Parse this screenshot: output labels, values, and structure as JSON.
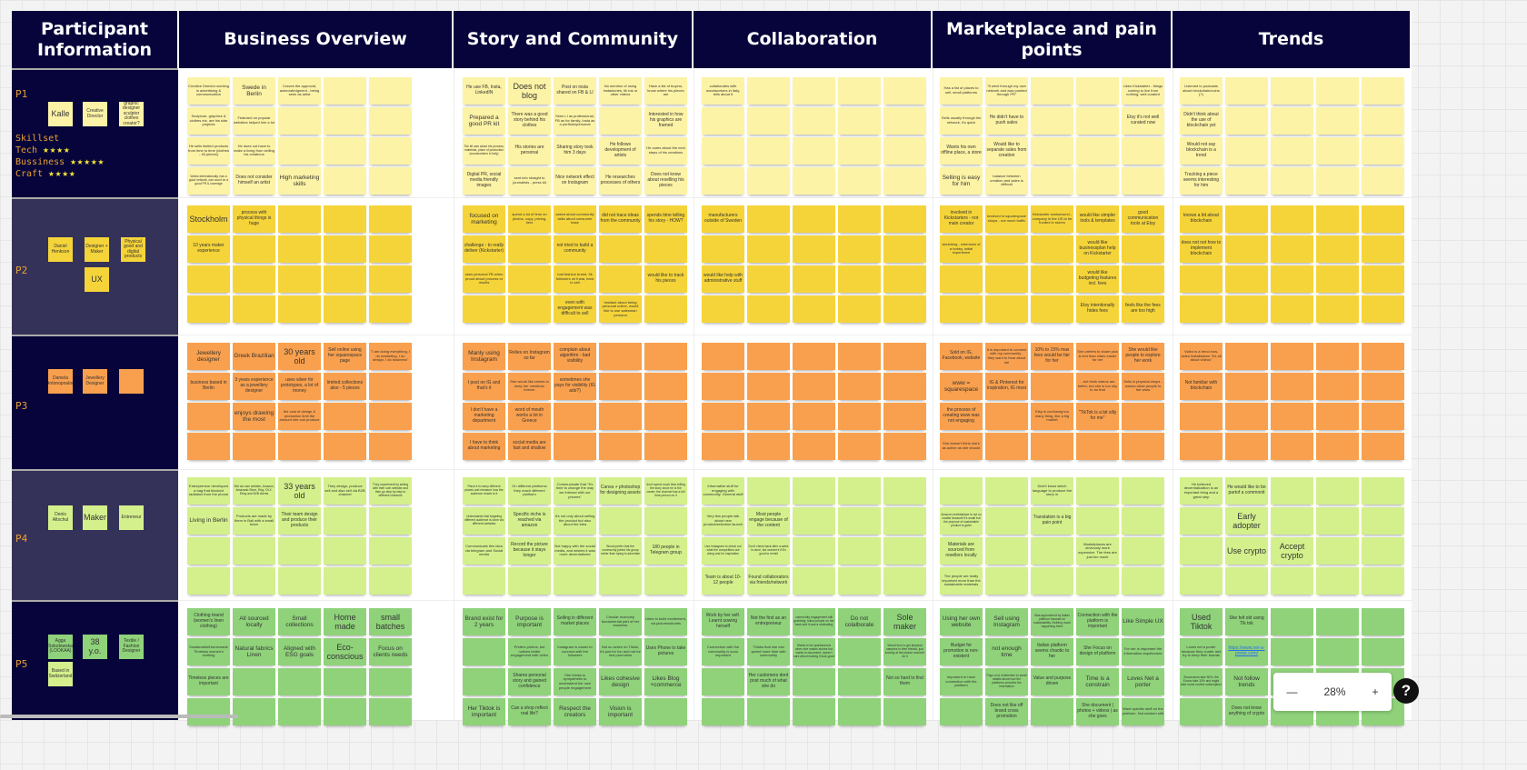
{
  "headers": [
    "Participant Information",
    "Business Overview",
    "Story and Community",
    "Collaboration",
    "Marketplace and pain points",
    "Trends"
  ],
  "colors": {
    "header": "#06043a",
    "row_dark": "#06043a",
    "row_slate": "#35325a",
    "p1": "#fdf3a6",
    "p2": "#f5d43a",
    "p3": "#f9a04e",
    "p4": "#d4f08c",
    "p5": "#8fd27a"
  },
  "participants": [
    {
      "label": "P1",
      "persona": [
        "Kalle",
        "Creative Director",
        "graphic designer sculptor clothes creator?"
      ],
      "skillset": {
        "title": "Skillset",
        "items": [
          {
            "name": "Tech",
            "stars": 4
          },
          {
            "name": "Bussiness",
            "stars": 5
          },
          {
            "name": "Craft",
            "stars": 4
          }
        ]
      }
    },
    {
      "label": "P2",
      "persona": [
        "Daniel Henkson",
        "Designer + Maker",
        "Physical good and digital products",
        "UX"
      ]
    },
    {
      "label": "P3",
      "persona": [
        "Daniela Antonopoulou",
        "Jewellery Designer",
        ""
      ]
    },
    {
      "label": "P4",
      "persona": [
        "Denis Altschul",
        "Maker",
        "Entreneur"
      ]
    },
    {
      "label": "P5",
      "persona": [
        "Agga Sokolowska (LOOKAA)",
        "38 y.o.",
        "Textile / Fashion Designer",
        "Based in Switzerland"
      ]
    }
  ],
  "rows": [
    {
      "business": [
        "Creative Director working in advertising & communication",
        "Swede in Berlin",
        "Craves the approval, acknowledgment - being seen as artist",
        "",
        "",
        "Sculpture, graphics & clothes etc. are his side projects",
        "Featured on popular websites helped him a lot",
        "",
        "",
        "",
        "He sells limited products from time to time (clothes - 40 pieces)",
        "He does not have to make a living from selling his creations",
        "",
        "",
        "",
        "Works internationally, has a good network, can count on a good PR & coverage",
        "Does not consider himself an artist",
        "High marketing skills",
        "",
        ""
      ],
      "story": [
        "He use FB, Insta, LinkedIN",
        "Does not blog",
        "Post on insta shared on FB & LI",
        "No mention of using instastories, tik tok or other videos",
        "Have a list of buyers, know where his pieces are",
        "Prepared a good PR kit",
        "There was a good story behind his clothes",
        "Sees LI as professional, FB as for family, Insta as a portfolio/personal",
        "",
        "Interested in how his graphics are framed",
        "The kit was about his process, materials, place of production (woodworkers in Italy)",
        "His stories are personal",
        "Sharing story took him 3 days",
        "He follows development of artists",
        "He cares about the next steps of his creations",
        "Digital PR, social media friendly images",
        "sent info straight to journalists - press kit",
        "Nice network effect on Instagram",
        "He researches processes of others",
        "Does not know about reselling his pieces"
      ],
      "collab": [
        "collaborates with woodworkers in Italy, tells about it",
        "",
        "",
        "",
        "",
        "",
        "",
        "",
        "",
        "",
        "",
        "",
        "",
        "",
        "",
        "",
        "",
        "",
        "",
        ""
      ],
      "market": [
        "Has a list of places to sell, small platforms",
        "\"It went through my own network and was pushed through PR\"",
        "",
        "",
        "Likes Kickstarter - things coming to live from nothing, well curated",
        "Sells usually through his network, it's quick",
        "He didn't have to push sales",
        "",
        "",
        "Etsy it's not well curated now",
        "Wants his own offline place, a store",
        "Would like to separate sales from creation",
        "",
        "",
        "",
        "Selling is easy for him",
        "balance between creation and sales is difficult",
        "",
        "",
        ""
      ],
      "trends": [
        "Listened to podcasts about blockchain/coins (?)",
        "",
        "",
        "",
        "",
        "Didn't think about the use of blockchain yet",
        "",
        "",
        "",
        "",
        "Would not say blockchain is a trend",
        "",
        "",
        "",
        "",
        "Tracking a piece seems interesting for him",
        "",
        "",
        "",
        ""
      ]
    },
    {
      "business": [
        "Stockholm",
        "process with physical things is huge",
        "",
        "",
        "",
        "10 years maker experience",
        "",
        "",
        "",
        "",
        "",
        "",
        "",
        "",
        "",
        "",
        "",
        "",
        "",
        ""
      ],
      "story": [
        "focused on marketing",
        "spend a lot of time on photos, copy, pricing, tiers",
        "asked about community talks about consumer base",
        "did not trace ideas from the community",
        "spends time telling his story - HOW?",
        "challenge - to really deliver (Kickstarter)",
        "",
        "not tried to build a community",
        "",
        "",
        "uses personal FB when proud about process or results",
        "",
        "had fashion brand, 5k followers on Insta, hard to sell",
        "",
        "would like to track his pieces",
        "",
        "",
        "even with engagement was difficult to sell",
        "hesitant about being personal online, would like to use salesman persona",
        ""
      ],
      "collab": [
        "manufacturers outside of Sweden",
        "",
        "",
        "",
        "",
        "",
        "",
        "",
        "",
        "",
        "would like help with administrative stuff",
        "",
        "",
        "",
        "",
        "",
        "",
        "",
        "",
        ""
      ],
      "market": [
        "involved in Kickstarters - not main creator",
        "involved in squarespace shops - not much traffic",
        "Kickstarter workaround - company in the US to be funded in stores",
        "would like simpler tools & templates",
        "good communication tools at Etsy",
        "sketching - extension of a hobby, initial experience",
        "",
        "",
        "would like businessplan help on Kickstarter",
        "",
        "",
        "",
        "",
        "would like budgeting features incl. fees",
        "",
        "",
        "",
        "",
        "Etsy intentionally hides fees",
        "feels like the fees are too high"
      ],
      "trends": [
        "knows a bit about blockchain",
        "",
        "",
        "",
        "",
        "does not not how to implement blockchain",
        "",
        "",
        "",
        "",
        "",
        "",
        "",
        "",
        "",
        "",
        "",
        "",
        "",
        ""
      ]
    },
    {
      "business": [
        "Jewellery designer",
        "Greek Brazilian",
        "30 years old",
        "Sell online using her squarespace page",
        "\"I am doing everything, I do marketing, I do design, I do business\"",
        "business based in Berlin",
        "3 years experience as a jewellery designer",
        "uses silver for prototypes, a lot of money",
        "limited collections also - 5 pieces",
        "",
        "",
        "enjoys drawing the most",
        "the cost of design & production limit the amount she can produce",
        "",
        "",
        "",
        "",
        "",
        "",
        ""
      ],
      "story": [
        "Manly using Instagram",
        "Relies on Instagram so far",
        "complain about algorithm - bad visibility",
        "",
        "",
        "I post on IG and that's it",
        "She would like clients to keep her creations forever",
        "sometimes she pays for visibility (IG ads?)",
        "",
        "",
        "I don't have a marketing department",
        "word of mouth works a lot in Greece",
        "",
        "",
        "",
        "I have to think about marketing",
        "social media are fast and shallow",
        "",
        "",
        ""
      ],
      "collab": [
        "",
        "",
        "",
        "",
        "",
        "",
        "",
        "",
        "",
        "",
        "",
        "",
        "",
        "",
        "",
        "",
        "",
        "",
        "",
        ""
      ],
      "market": [
        "Sold on IG, Facebook, website",
        "It is important to connect with my community - they want to hear about me",
        "10% to 15% max fees would be fair for her",
        "She prefers to share pics & text than video easier for her",
        "She would like people to explore her work",
        "www = squarespace",
        "IG & Pinterest for inspiration, IG most",
        "",
        "...but think videos are better, but she is too shy to do that",
        "Sells in physical shops - wanna allow people to her www",
        "the process of creating www was not engaging",
        "",
        "Etsy is confusing too many thing, like a big market",
        "\"TikTok is a bit silly for me\"",
        "",
        "She doesn't think she's as active as she should",
        "",
        "",
        "",
        ""
      ],
      "trends": [
        "Video is a trend now, video installations \"it's all about videos\"",
        "",
        "",
        "",
        "",
        "Not familiar with blockchain",
        "",
        "",
        "",
        "",
        "",
        "",
        "",
        "",
        "",
        "",
        "",
        "",
        "",
        ""
      ]
    },
    {
      "business": [
        "Entrepreneur developed a bag that blocked radiation from the phone",
        "Sell via own website, Amazon, Amazado Store, Etsy, OLX, Ebay and B2B clients",
        "33 years old",
        "They design, produce sell and also sell via B2B channel",
        "They experiment by selling with their own website and then go step by step to different channels",
        "Living in Berlin",
        "Products are made by them in Bali with a small team",
        "Their team design and produce their products",
        "",
        "",
        "",
        "",
        "",
        "",
        "",
        "",
        "",
        "",
        "",
        ""
      ],
      "story": [
        "Place it in many different places and measure how the audience reacts to it",
        "On different platforms they reach different platform",
        "Communicate that \"it's time to change the way we interact with our phones\"",
        "Canva + photoshop for designing assets",
        "don't spend much time telling the story since he is the owner; the channel has a full time person on it",
        "Understands that targeting different audience is done via different websites",
        "Specific niche is reached via amazon",
        "It's not only about selling the product but also about the idea",
        "",
        "",
        "Communicate this idea via telegram and Social media",
        "Record the picture because it stays longer",
        "Not happy with the social media, and wishes it was more decentralized",
        "Would prefer that the community joined his group rather than trying to advertise",
        "180 people in Telegram group",
        "",
        "",
        "",
        "",
        ""
      ],
      "collab": [
        "Informative stuff for engaging with community. General stuff",
        "",
        "",
        "",
        "",
        "Very few people talk about new product/selection launch",
        "Most people engage because of the content",
        "",
        "",
        "",
        "Use Instagram to check out what the competitors are doing and for inspiration",
        "Don't check back after a sales is done, but wonder's if it's good to revisit",
        "",
        "",
        "",
        "Team is about 10-12 people",
        "Found collaborators via friends/network",
        "",
        "",
        ""
      ],
      "market": [
        "",
        "",
        "Didn't know which language to produce the story in",
        "",
        "",
        "Amazon marketplace is not so usable because it's small but the purpose of sustainable product is given",
        "",
        "Translation is a big pain point",
        "",
        "",
        "Materials are sourced from resellers locally",
        "",
        "",
        "Marketplaces are obviously more expensive. The fees are just too much",
        "",
        "The people are really important more than the sustainable materials",
        "",
        "",
        "",
        ""
      ],
      "trends": [
        "He believed decentralization is an important thing and a great step",
        "He would like to be partof a commnnit",
        "",
        "",
        "",
        "",
        "Early adopter",
        "",
        "",
        "",
        "",
        "Use crypto",
        "Accept crypto",
        "",
        "",
        "",
        "",
        "",
        "",
        ""
      ]
    },
    {
      "business": [
        "Clothing brand (women's linen clothing)",
        "All sourced locally",
        "Small collections",
        "Home made",
        "small batches",
        "Sustainable/Homemade Timeless women's clothing",
        "Natural fabrics Linen",
        "Aligned with ESG goals",
        "Eco-conscious",
        "Focus on clients needs",
        "Timeless pieces are important",
        "",
        "",
        "",
        "",
        "",
        "",
        "",
        "",
        ""
      ],
      "story": [
        "Brand exist for 2 years",
        "Purpose is important",
        "Selling in different market places",
        "Circular economy fundamental part of her business",
        "Likes to build excitement, via pictures/stories",
        "",
        "Prefers photos, but notices better engagement with video",
        "Instagram is easier to connect with the followers",
        "Not so active on Tiktok, it's just for fun and not for real promotion",
        "Uses Phone to take pictures",
        "",
        "Shares personal story and gained confidence",
        "She thinks is sympathetic to understand her own people engagement",
        "Likes cohesive design",
        "Likes Blog +commerce",
        "Her Tiktok is important",
        "Can a shop reflect real life?",
        "Respect the creators",
        "Vision is important",
        ""
      ],
      "collab": [
        "Work by her self. Learnt sowing herself",
        "Not the first as an entrepreneur",
        "community engagement still grabbing; follow people on her back and it was a motivating",
        "Do not colalborate",
        "Sole maker",
        "Connection with the community is sooo important",
        "Thinks that she can spend more time with community",
        "Wants to be spontaneous when she makes stories but wants to document, doesn't care about making it look good",
        "",
        "Would love to get physical samples in their friends, just looking at the picture wouldn't do it",
        "",
        "Her customers dont post much of what she do",
        "",
        "",
        "Not so hard to find them",
        "",
        "",
        "",
        "",
        ""
      ],
      "market": [
        "Using her own website",
        "Sell using Instagram",
        "Was approached by Italian platform focused on sustainability. Nothing much happening there",
        "Connection with the platform is important",
        "Like Simple UX",
        "Budget for promotion is non-existent",
        "not enough time",
        "Italian platform seems chaotic to her",
        "She Focus on design of platform",
        "For her is important the information arquitecture",
        "Important to have connection with the platform",
        "Pays a lot of attention to small details about how the platforms provides the information",
        "Value and purpose driven",
        "Time is a constrain",
        "Loves Net a porter",
        "",
        "Does not like off brand cross promotion",
        "",
        "She document | photos + videos | as she goes",
        "Want specific stuff on the platform. Not random shit"
      ],
      "trends": [
        "Used Tiktok",
        "She felt old using Tik tok",
        "",
        "",
        "",
        "Loves net a porter because they curate and try to keep their brands",
        "https://www.net-a-porter.com/",
        "",
        "",
        "",
        "Showrooms take 50%, the Eunos take 10% and might take some routine subscription",
        "Not follow trends",
        "",
        "",
        "",
        "",
        "Does not know anything of crypto",
        "",
        "",
        ""
      ]
    }
  ],
  "zoom": {
    "minus": "—",
    "level": "28%",
    "plus": "+",
    "help": "?"
  }
}
